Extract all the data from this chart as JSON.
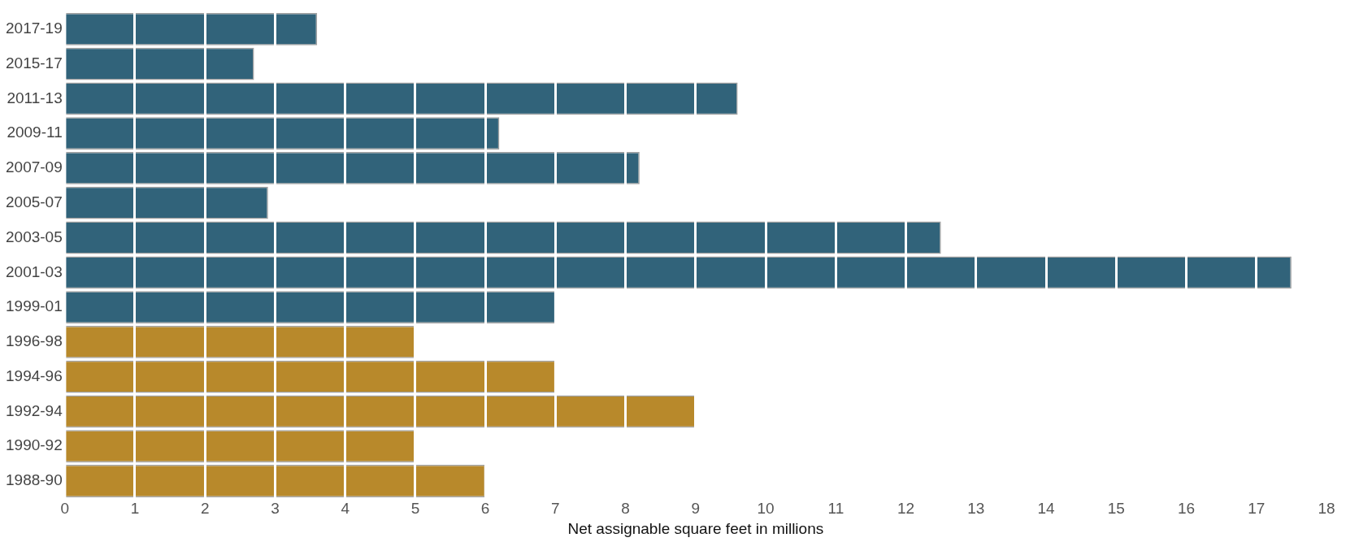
{
  "chart_data": {
    "type": "bar",
    "orientation": "horizontal",
    "xlabel": "Net assignable square feet in millions",
    "categories": [
      "2017-19",
      "2015-17",
      "2011-13",
      "2009-11",
      "2007-09",
      "2005-07",
      "2003-05",
      "2001-03",
      "1999-01",
      "1996-98",
      "1994-96",
      "1992-94",
      "1990-92",
      "1988-90"
    ],
    "values": [
      3.6,
      2.7,
      9.6,
      6.2,
      8.2,
      2.9,
      12.5,
      17.5,
      7,
      5,
      7,
      9,
      5,
      6
    ],
    "colors": [
      "#31637a",
      "#31637a",
      "#31637a",
      "#31637a",
      "#31637a",
      "#31637a",
      "#31637a",
      "#31637a",
      "#31637a",
      "#b8892b",
      "#b8892b",
      "#b8892b",
      "#b8892b",
      "#b8892b"
    ],
    "xlim": [
      0,
      18
    ],
    "xticks": [
      0,
      1,
      2,
      3,
      4,
      5,
      6,
      7,
      8,
      9,
      10,
      11,
      12,
      13,
      14,
      15,
      16,
      17,
      18
    ],
    "grid": "x",
    "legend": false
  }
}
